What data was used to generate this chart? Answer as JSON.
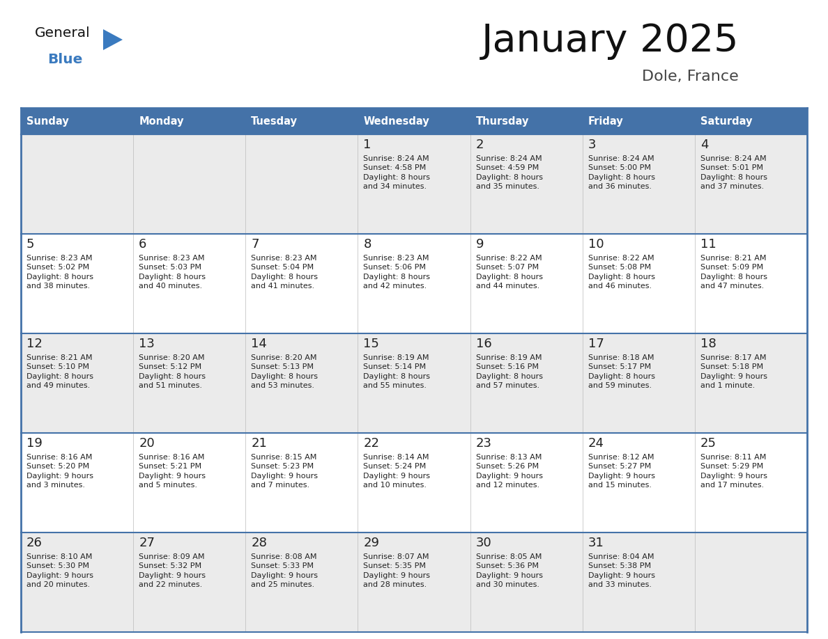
{
  "title": "January 2025",
  "subtitle": "Dole, France",
  "days_of_week": [
    "Sunday",
    "Monday",
    "Tuesday",
    "Wednesday",
    "Thursday",
    "Friday",
    "Saturday"
  ],
  "header_bg": "#4472a8",
  "header_text": "#ffffff",
  "cell_bg_odd": "#ebebeb",
  "cell_bg_even": "#ffffff",
  "border_color": "#4472a8",
  "day_number_color": "#222222",
  "text_color": "#222222",
  "title_color": "#111111",
  "subtitle_color": "#444444",
  "logo_general_color": "#111111",
  "logo_blue_color": "#3a7abf",
  "weeks": [
    [
      {
        "day": 0,
        "info": ""
      },
      {
        "day": 0,
        "info": ""
      },
      {
        "day": 0,
        "info": ""
      },
      {
        "day": 1,
        "info": "Sunrise: 8:24 AM\nSunset: 4:58 PM\nDaylight: 8 hours\nand 34 minutes."
      },
      {
        "day": 2,
        "info": "Sunrise: 8:24 AM\nSunset: 4:59 PM\nDaylight: 8 hours\nand 35 minutes."
      },
      {
        "day": 3,
        "info": "Sunrise: 8:24 AM\nSunset: 5:00 PM\nDaylight: 8 hours\nand 36 minutes."
      },
      {
        "day": 4,
        "info": "Sunrise: 8:24 AM\nSunset: 5:01 PM\nDaylight: 8 hours\nand 37 minutes."
      }
    ],
    [
      {
        "day": 5,
        "info": "Sunrise: 8:23 AM\nSunset: 5:02 PM\nDaylight: 8 hours\nand 38 minutes."
      },
      {
        "day": 6,
        "info": "Sunrise: 8:23 AM\nSunset: 5:03 PM\nDaylight: 8 hours\nand 40 minutes."
      },
      {
        "day": 7,
        "info": "Sunrise: 8:23 AM\nSunset: 5:04 PM\nDaylight: 8 hours\nand 41 minutes."
      },
      {
        "day": 8,
        "info": "Sunrise: 8:23 AM\nSunset: 5:06 PM\nDaylight: 8 hours\nand 42 minutes."
      },
      {
        "day": 9,
        "info": "Sunrise: 8:22 AM\nSunset: 5:07 PM\nDaylight: 8 hours\nand 44 minutes."
      },
      {
        "day": 10,
        "info": "Sunrise: 8:22 AM\nSunset: 5:08 PM\nDaylight: 8 hours\nand 46 minutes."
      },
      {
        "day": 11,
        "info": "Sunrise: 8:21 AM\nSunset: 5:09 PM\nDaylight: 8 hours\nand 47 minutes."
      }
    ],
    [
      {
        "day": 12,
        "info": "Sunrise: 8:21 AM\nSunset: 5:10 PM\nDaylight: 8 hours\nand 49 minutes."
      },
      {
        "day": 13,
        "info": "Sunrise: 8:20 AM\nSunset: 5:12 PM\nDaylight: 8 hours\nand 51 minutes."
      },
      {
        "day": 14,
        "info": "Sunrise: 8:20 AM\nSunset: 5:13 PM\nDaylight: 8 hours\nand 53 minutes."
      },
      {
        "day": 15,
        "info": "Sunrise: 8:19 AM\nSunset: 5:14 PM\nDaylight: 8 hours\nand 55 minutes."
      },
      {
        "day": 16,
        "info": "Sunrise: 8:19 AM\nSunset: 5:16 PM\nDaylight: 8 hours\nand 57 minutes."
      },
      {
        "day": 17,
        "info": "Sunrise: 8:18 AM\nSunset: 5:17 PM\nDaylight: 8 hours\nand 59 minutes."
      },
      {
        "day": 18,
        "info": "Sunrise: 8:17 AM\nSunset: 5:18 PM\nDaylight: 9 hours\nand 1 minute."
      }
    ],
    [
      {
        "day": 19,
        "info": "Sunrise: 8:16 AM\nSunset: 5:20 PM\nDaylight: 9 hours\nand 3 minutes."
      },
      {
        "day": 20,
        "info": "Sunrise: 8:16 AM\nSunset: 5:21 PM\nDaylight: 9 hours\nand 5 minutes."
      },
      {
        "day": 21,
        "info": "Sunrise: 8:15 AM\nSunset: 5:23 PM\nDaylight: 9 hours\nand 7 minutes."
      },
      {
        "day": 22,
        "info": "Sunrise: 8:14 AM\nSunset: 5:24 PM\nDaylight: 9 hours\nand 10 minutes."
      },
      {
        "day": 23,
        "info": "Sunrise: 8:13 AM\nSunset: 5:26 PM\nDaylight: 9 hours\nand 12 minutes."
      },
      {
        "day": 24,
        "info": "Sunrise: 8:12 AM\nSunset: 5:27 PM\nDaylight: 9 hours\nand 15 minutes."
      },
      {
        "day": 25,
        "info": "Sunrise: 8:11 AM\nSunset: 5:29 PM\nDaylight: 9 hours\nand 17 minutes."
      }
    ],
    [
      {
        "day": 26,
        "info": "Sunrise: 8:10 AM\nSunset: 5:30 PM\nDaylight: 9 hours\nand 20 minutes."
      },
      {
        "day": 27,
        "info": "Sunrise: 8:09 AM\nSunset: 5:32 PM\nDaylight: 9 hours\nand 22 minutes."
      },
      {
        "day": 28,
        "info": "Sunrise: 8:08 AM\nSunset: 5:33 PM\nDaylight: 9 hours\nand 25 minutes."
      },
      {
        "day": 29,
        "info": "Sunrise: 8:07 AM\nSunset: 5:35 PM\nDaylight: 9 hours\nand 28 minutes."
      },
      {
        "day": 30,
        "info": "Sunrise: 8:05 AM\nSunset: 5:36 PM\nDaylight: 9 hours\nand 30 minutes."
      },
      {
        "day": 31,
        "info": "Sunrise: 8:04 AM\nSunset: 5:38 PM\nDaylight: 9 hours\nand 33 minutes."
      },
      {
        "day": 0,
        "info": ""
      }
    ]
  ],
  "fig_width": 11.88,
  "fig_height": 9.18,
  "dpi": 100
}
